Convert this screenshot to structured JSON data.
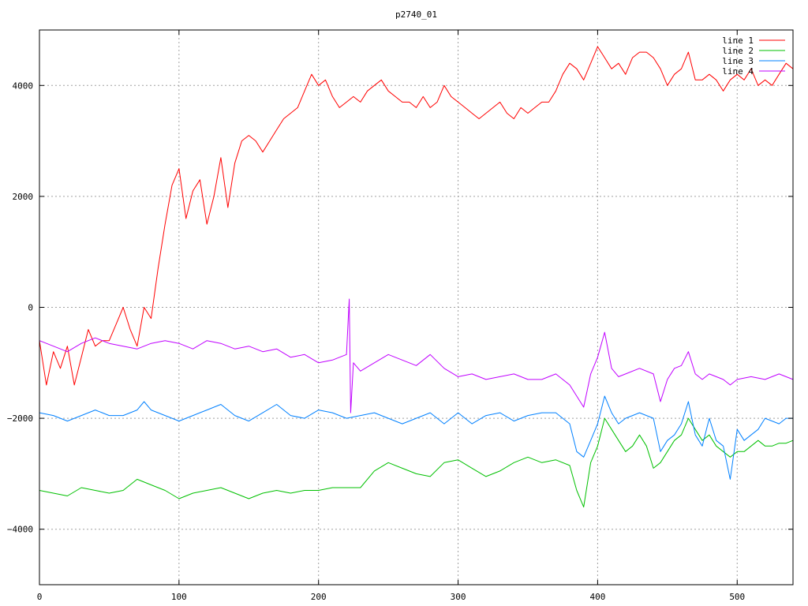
{
  "chart_data": {
    "type": "line",
    "title": "p2740_01",
    "xlabel": "",
    "ylabel": "",
    "xlim": [
      0,
      540
    ],
    "ylim": [
      -5000,
      5000
    ],
    "x_ticks": [
      0,
      100,
      200,
      300,
      400,
      500
    ],
    "y_ticks": [
      -4000,
      -2000,
      0,
      2000,
      4000
    ],
    "grid": true,
    "legend_position": "top-right",
    "series": [
      {
        "name": "line 1",
        "color": "#ff0000",
        "points": [
          [
            0,
            -600
          ],
          [
            5,
            -1400
          ],
          [
            10,
            -800
          ],
          [
            15,
            -1100
          ],
          [
            20,
            -700
          ],
          [
            25,
            -1400
          ],
          [
            30,
            -900
          ],
          [
            35,
            -400
          ],
          [
            40,
            -700
          ],
          [
            45,
            -600
          ],
          [
            50,
            -600
          ],
          [
            55,
            -300
          ],
          [
            60,
            0
          ],
          [
            65,
            -400
          ],
          [
            70,
            -700
          ],
          [
            75,
            0
          ],
          [
            80,
            -200
          ],
          [
            85,
            700
          ],
          [
            90,
            1500
          ],
          [
            95,
            2200
          ],
          [
            100,
            2500
          ],
          [
            105,
            1600
          ],
          [
            110,
            2100
          ],
          [
            115,
            2300
          ],
          [
            120,
            1500
          ],
          [
            125,
            2000
          ],
          [
            130,
            2700
          ],
          [
            135,
            1800
          ],
          [
            140,
            2600
          ],
          [
            145,
            3000
          ],
          [
            150,
            3100
          ],
          [
            155,
            3000
          ],
          [
            160,
            2800
          ],
          [
            165,
            3000
          ],
          [
            170,
            3200
          ],
          [
            175,
            3400
          ],
          [
            180,
            3500
          ],
          [
            185,
            3600
          ],
          [
            190,
            3900
          ],
          [
            195,
            4200
          ],
          [
            200,
            4000
          ],
          [
            205,
            4100
          ],
          [
            210,
            3800
          ],
          [
            215,
            3600
          ],
          [
            220,
            3700
          ],
          [
            225,
            3800
          ],
          [
            230,
            3700
          ],
          [
            235,
            3900
          ],
          [
            240,
            4000
          ],
          [
            245,
            4100
          ],
          [
            250,
            3900
          ],
          [
            255,
            3800
          ],
          [
            260,
            3700
          ],
          [
            265,
            3700
          ],
          [
            270,
            3600
          ],
          [
            275,
            3800
          ],
          [
            280,
            3600
          ],
          [
            285,
            3700
          ],
          [
            290,
            4000
          ],
          [
            295,
            3800
          ],
          [
            300,
            3700
          ],
          [
            305,
            3600
          ],
          [
            310,
            3500
          ],
          [
            315,
            3400
          ],
          [
            320,
            3500
          ],
          [
            325,
            3600
          ],
          [
            330,
            3700
          ],
          [
            335,
            3500
          ],
          [
            340,
            3400
          ],
          [
            345,
            3600
          ],
          [
            350,
            3500
          ],
          [
            355,
            3600
          ],
          [
            360,
            3700
          ],
          [
            365,
            3700
          ],
          [
            370,
            3900
          ],
          [
            375,
            4200
          ],
          [
            380,
            4400
          ],
          [
            385,
            4300
          ],
          [
            390,
            4100
          ],
          [
            395,
            4400
          ],
          [
            400,
            4700
          ],
          [
            405,
            4500
          ],
          [
            410,
            4300
          ],
          [
            415,
            4400
          ],
          [
            420,
            4200
          ],
          [
            425,
            4500
          ],
          [
            430,
            4600
          ],
          [
            435,
            4600
          ],
          [
            440,
            4500
          ],
          [
            445,
            4300
          ],
          [
            450,
            4000
          ],
          [
            455,
            4200
          ],
          [
            460,
            4300
          ],
          [
            465,
            4600
          ],
          [
            470,
            4100
          ],
          [
            475,
            4100
          ],
          [
            480,
            4200
          ],
          [
            485,
            4100
          ],
          [
            490,
            3900
          ],
          [
            495,
            4100
          ],
          [
            500,
            4200
          ],
          [
            505,
            4100
          ],
          [
            510,
            4300
          ],
          [
            515,
            4000
          ],
          [
            520,
            4100
          ],
          [
            525,
            4000
          ],
          [
            530,
            4200
          ],
          [
            535,
            4400
          ],
          [
            540,
            4300
          ]
        ]
      },
      {
        "name": "line 2",
        "color": "#00c000",
        "points": [
          [
            0,
            -3300
          ],
          [
            10,
            -3350
          ],
          [
            20,
            -3400
          ],
          [
            30,
            -3250
          ],
          [
            40,
            -3300
          ],
          [
            50,
            -3350
          ],
          [
            60,
            -3300
          ],
          [
            70,
            -3100
          ],
          [
            80,
            -3200
          ],
          [
            90,
            -3300
          ],
          [
            100,
            -3450
          ],
          [
            110,
            -3350
          ],
          [
            120,
            -3300
          ],
          [
            130,
            -3250
          ],
          [
            140,
            -3350
          ],
          [
            150,
            -3450
          ],
          [
            160,
            -3350
          ],
          [
            170,
            -3300
          ],
          [
            180,
            -3350
          ],
          [
            190,
            -3300
          ],
          [
            200,
            -3300
          ],
          [
            210,
            -3250
          ],
          [
            220,
            -3250
          ],
          [
            230,
            -3250
          ],
          [
            240,
            -2950
          ],
          [
            250,
            -2800
          ],
          [
            260,
            -2900
          ],
          [
            270,
            -3000
          ],
          [
            280,
            -3050
          ],
          [
            290,
            -2800
          ],
          [
            300,
            -2750
          ],
          [
            310,
            -2900
          ],
          [
            320,
            -3050
          ],
          [
            330,
            -2950
          ],
          [
            340,
            -2800
          ],
          [
            350,
            -2700
          ],
          [
            360,
            -2800
          ],
          [
            370,
            -2750
          ],
          [
            380,
            -2850
          ],
          [
            385,
            -3300
          ],
          [
            390,
            -3600
          ],
          [
            395,
            -2800
          ],
          [
            400,
            -2500
          ],
          [
            405,
            -2000
          ],
          [
            410,
            -2200
          ],
          [
            415,
            -2400
          ],
          [
            420,
            -2600
          ],
          [
            425,
            -2500
          ],
          [
            430,
            -2300
          ],
          [
            435,
            -2500
          ],
          [
            440,
            -2900
          ],
          [
            445,
            -2800
          ],
          [
            450,
            -2600
          ],
          [
            455,
            -2400
          ],
          [
            460,
            -2300
          ],
          [
            465,
            -2000
          ],
          [
            470,
            -2200
          ],
          [
            475,
            -2400
          ],
          [
            480,
            -2300
          ],
          [
            485,
            -2500
          ],
          [
            490,
            -2600
          ],
          [
            495,
            -2700
          ],
          [
            500,
            -2600
          ],
          [
            505,
            -2600
          ],
          [
            510,
            -2500
          ],
          [
            515,
            -2400
          ],
          [
            520,
            -2500
          ],
          [
            525,
            -2500
          ],
          [
            530,
            -2450
          ],
          [
            535,
            -2450
          ],
          [
            540,
            -2400
          ]
        ]
      },
      {
        "name": "line 3",
        "color": "#0080ff",
        "points": [
          [
            0,
            -1900
          ],
          [
            10,
            -1950
          ],
          [
            20,
            -2050
          ],
          [
            30,
            -1950
          ],
          [
            40,
            -1850
          ],
          [
            50,
            -1950
          ],
          [
            60,
            -1950
          ],
          [
            70,
            -1850
          ],
          [
            75,
            -1700
          ],
          [
            80,
            -1850
          ],
          [
            90,
            -1950
          ],
          [
            100,
            -2050
          ],
          [
            110,
            -1950
          ],
          [
            120,
            -1850
          ],
          [
            130,
            -1750
          ],
          [
            140,
            -1950
          ],
          [
            150,
            -2050
          ],
          [
            160,
            -1900
          ],
          [
            170,
            -1750
          ],
          [
            180,
            -1950
          ],
          [
            190,
            -2000
          ],
          [
            200,
            -1850
          ],
          [
            210,
            -1900
          ],
          [
            220,
            -2000
          ],
          [
            230,
            -1950
          ],
          [
            240,
            -1900
          ],
          [
            250,
            -2000
          ],
          [
            260,
            -2100
          ],
          [
            270,
            -2000
          ],
          [
            280,
            -1900
          ],
          [
            290,
            -2100
          ],
          [
            300,
            -1900
          ],
          [
            310,
            -2100
          ],
          [
            320,
            -1950
          ],
          [
            330,
            -1900
          ],
          [
            340,
            -2050
          ],
          [
            350,
            -1950
          ],
          [
            360,
            -1900
          ],
          [
            370,
            -1900
          ],
          [
            380,
            -2100
          ],
          [
            385,
            -2600
          ],
          [
            390,
            -2700
          ],
          [
            395,
            -2400
          ],
          [
            400,
            -2100
          ],
          [
            405,
            -1600
          ],
          [
            410,
            -1900
          ],
          [
            415,
            -2100
          ],
          [
            420,
            -2000
          ],
          [
            430,
            -1900
          ],
          [
            440,
            -2000
          ],
          [
            445,
            -2600
          ],
          [
            450,
            -2400
          ],
          [
            455,
            -2300
          ],
          [
            460,
            -2100
          ],
          [
            465,
            -1700
          ],
          [
            470,
            -2300
          ],
          [
            475,
            -2500
          ],
          [
            480,
            -2000
          ],
          [
            485,
            -2400
          ],
          [
            490,
            -2500
          ],
          [
            495,
            -3100
          ],
          [
            500,
            -2200
          ],
          [
            505,
            -2400
          ],
          [
            510,
            -2300
          ],
          [
            515,
            -2200
          ],
          [
            520,
            -2000
          ],
          [
            525,
            -2050
          ],
          [
            530,
            -2100
          ],
          [
            535,
            -2000
          ],
          [
            540,
            -2000
          ]
        ]
      },
      {
        "name": "line 4",
        "color": "#c000ff",
        "points": [
          [
            0,
            -600
          ],
          [
            10,
            -700
          ],
          [
            20,
            -800
          ],
          [
            30,
            -650
          ],
          [
            40,
            -550
          ],
          [
            50,
            -650
          ],
          [
            60,
            -700
          ],
          [
            70,
            -750
          ],
          [
            80,
            -650
          ],
          [
            90,
            -600
          ],
          [
            100,
            -650
          ],
          [
            110,
            -750
          ],
          [
            120,
            -600
          ],
          [
            130,
            -650
          ],
          [
            140,
            -750
          ],
          [
            150,
            -700
          ],
          [
            160,
            -800
          ],
          [
            170,
            -750
          ],
          [
            180,
            -900
          ],
          [
            190,
            -850
          ],
          [
            200,
            -1000
          ],
          [
            210,
            -950
          ],
          [
            215,
            -900
          ],
          [
            220,
            -850
          ],
          [
            222,
            150
          ],
          [
            223,
            -1900
          ],
          [
            225,
            -1000
          ],
          [
            230,
            -1150
          ],
          [
            240,
            -1000
          ],
          [
            250,
            -850
          ],
          [
            260,
            -950
          ],
          [
            270,
            -1050
          ],
          [
            280,
            -850
          ],
          [
            290,
            -1100
          ],
          [
            300,
            -1250
          ],
          [
            310,
            -1200
          ],
          [
            320,
            -1300
          ],
          [
            330,
            -1250
          ],
          [
            340,
            -1200
          ],
          [
            350,
            -1300
          ],
          [
            360,
            -1300
          ],
          [
            370,
            -1200
          ],
          [
            380,
            -1400
          ],
          [
            385,
            -1600
          ],
          [
            390,
            -1800
          ],
          [
            395,
            -1200
          ],
          [
            400,
            -900
          ],
          [
            405,
            -450
          ],
          [
            410,
            -1100
          ],
          [
            415,
            -1250
          ],
          [
            420,
            -1200
          ],
          [
            430,
            -1100
          ],
          [
            440,
            -1200
          ],
          [
            445,
            -1700
          ],
          [
            450,
            -1300
          ],
          [
            455,
            -1100
          ],
          [
            460,
            -1050
          ],
          [
            465,
            -800
          ],
          [
            470,
            -1200
          ],
          [
            475,
            -1300
          ],
          [
            480,
            -1200
          ],
          [
            490,
            -1300
          ],
          [
            495,
            -1400
          ],
          [
            500,
            -1300
          ],
          [
            510,
            -1250
          ],
          [
            520,
            -1300
          ],
          [
            530,
            -1200
          ],
          [
            540,
            -1300
          ]
        ]
      }
    ]
  }
}
